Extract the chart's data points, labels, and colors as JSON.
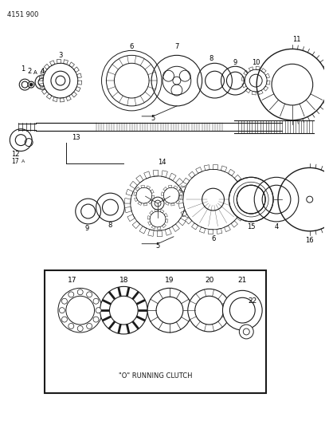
{
  "title": "4151 900",
  "bg": "#ffffff",
  "lc": "#1a1a1a",
  "figsize": [
    4.08,
    5.33
  ],
  "dpi": 100,
  "inset_text": "\"O\" RUNNING CLUTCH"
}
